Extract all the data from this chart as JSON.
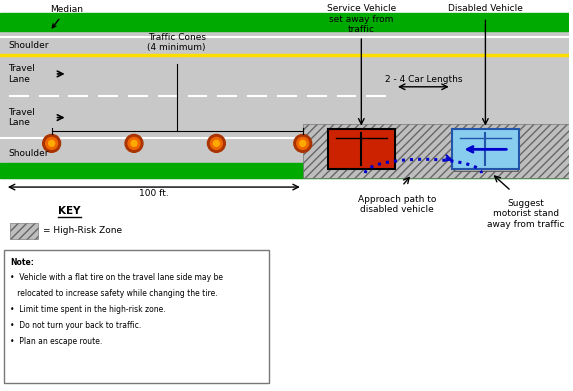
{
  "bg_color": "#ffffff",
  "road_color": "#c8c8c8",
  "green_color": "#00aa00",
  "yellow_line_color": "#ffdd00",
  "hatch_color": "#888888",
  "service_vehicle_color": "#cc2200",
  "disabled_vehicle_color": "#88ccee",
  "cone_color": "#dd4400",
  "cone_outline": "#cc3300",
  "arrow_color": "#0000cc",
  "text_color": "#000000",
  "median_label": "Median",
  "shoulder_top_label": "Shoulder",
  "shoulder_bot_label": "Shoulder",
  "travel_lane1_label": "Travel\nLane",
  "travel_lane2_label": "Travel\nLane",
  "traffic_cones_label": "Traffic Cones\n(4 minimum)",
  "service_vehicle_label": "Service Vehicle\nset away from\ntraffic",
  "disabled_vehicle_label": "Disabled Vehicle",
  "car_lengths_label": "2 - 4 Car Lengths",
  "approach_label": "Approach path to\ndisabled vehicle",
  "motorist_label": "Suggest\nmotorist stand\naway from traffic",
  "distance_label": "100 ft.",
  "key_label": "KEY",
  "high_risk_label": "= High-Risk Zone",
  "note_lines": [
    "Note:",
    "•  Vehicle with a flat tire on the travel lane side may be",
    "   relocated to increase safety while changing the tire.",
    "•  Limit time spent in the high-risk zone.",
    "•  Do not turn your back to traffic.",
    "•  Plan an escape route."
  ]
}
